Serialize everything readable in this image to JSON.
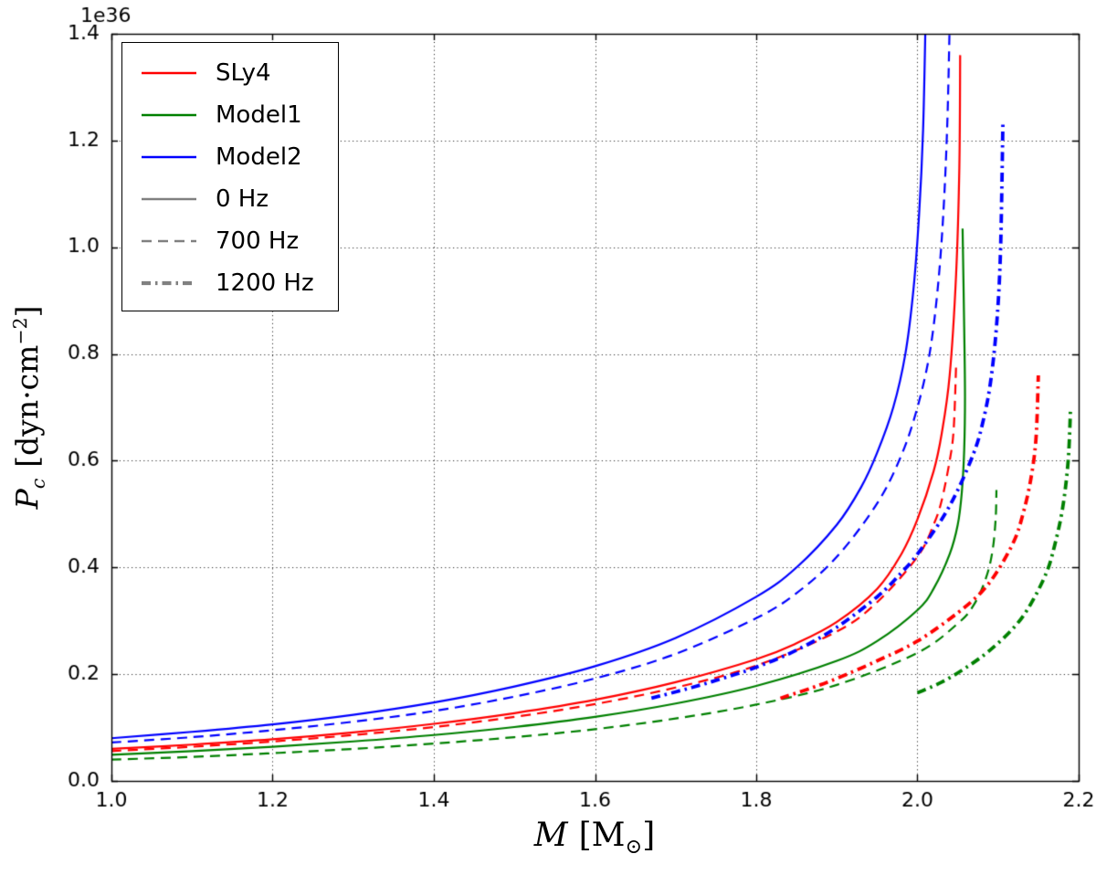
{
  "axis_labels": {
    "x": {
      "var": "M",
      "unit_pre": "[M",
      "unit_sub": "⊙",
      "unit_post": "]"
    },
    "y": {
      "var": "P",
      "var_sub": "c",
      "unit_pre": "[dyn·cm",
      "unit_sup": "−2",
      "unit_post": "]"
    }
  },
  "chart_data": {
    "type": "line",
    "title": "",
    "xlabel": "M [M_sun]",
    "ylabel": "P_c [dyn cm^-2]",
    "offset_text": "1e36",
    "xlim": [
      1.0,
      2.2
    ],
    "ylim": [
      0.0,
      1.4
    ],
    "grid": "dotted",
    "x_ticks": [
      "1.0",
      "1.2",
      "1.4",
      "1.6",
      "1.8",
      "2.0",
      "2.2"
    ],
    "x_tick_values": [
      1.0,
      1.2,
      1.4,
      1.6,
      1.8,
      2.0,
      2.2
    ],
    "y_ticks": [
      "0.0",
      "0.2",
      "0.4",
      "0.6",
      "0.8",
      "1.0",
      "1.2",
      "1.4"
    ],
    "y_tick_values": [
      0.0,
      0.2,
      0.4,
      0.6,
      0.8,
      1.0,
      1.2,
      1.4
    ],
    "legend": {
      "position": "upper left",
      "entries": [
        {
          "label": "SLy4",
          "color": "#ff0000",
          "dash": [],
          "width": 2.4
        },
        {
          "label": "Model1",
          "color": "#008000",
          "dash": [],
          "width": 2.4
        },
        {
          "label": "Model2",
          "color": "#0000ff",
          "dash": [],
          "width": 2.4
        },
        {
          "label": "0 Hz",
          "color": "#808080",
          "dash": [],
          "width": 2.4
        },
        {
          "label": "700 Hz",
          "color": "#808080",
          "dash": [
            11,
            7
          ],
          "width": 2.4
        },
        {
          "label": "1200 Hz",
          "color": "#808080",
          "dash": [
            10,
            5,
            2.5,
            5
          ],
          "width": 4.2
        }
      ]
    },
    "series": [
      {
        "name": "SLy4 0 Hz",
        "eos": "SLy4",
        "frequency_hz": 0,
        "color": "#ff0000",
        "dash": [],
        "width": 2.2,
        "points": [
          [
            1.0,
            0.06
          ],
          [
            1.1,
            0.068
          ],
          [
            1.2,
            0.078
          ],
          [
            1.3,
            0.091
          ],
          [
            1.4,
            0.107
          ],
          [
            1.5,
            0.127
          ],
          [
            1.6,
            0.152
          ],
          [
            1.7,
            0.185
          ],
          [
            1.8,
            0.228
          ],
          [
            1.85,
            0.258
          ],
          [
            1.9,
            0.298
          ],
          [
            1.95,
            0.36
          ],
          [
            1.98,
            0.425
          ],
          [
            2.0,
            0.49
          ],
          [
            2.02,
            0.58
          ],
          [
            2.03,
            0.65
          ],
          [
            2.04,
            0.76
          ],
          [
            2.048,
            0.95
          ],
          [
            2.052,
            1.15
          ],
          [
            2.053,
            1.36
          ]
        ]
      },
      {
        "name": "Model1 0 Hz",
        "eos": "Model1",
        "frequency_hz": 0,
        "color": "#008000",
        "dash": [],
        "width": 2.2,
        "points": [
          [
            1.0,
            0.049
          ],
          [
            1.1,
            0.056
          ],
          [
            1.2,
            0.064
          ],
          [
            1.3,
            0.074
          ],
          [
            1.4,
            0.086
          ],
          [
            1.5,
            0.101
          ],
          [
            1.6,
            0.12
          ],
          [
            1.7,
            0.145
          ],
          [
            1.8,
            0.178
          ],
          [
            1.9,
            0.225
          ],
          [
            1.95,
            0.262
          ],
          [
            2.0,
            0.32
          ],
          [
            2.02,
            0.36
          ],
          [
            2.04,
            0.425
          ],
          [
            2.05,
            0.48
          ],
          [
            2.055,
            0.54
          ],
          [
            2.058,
            0.62
          ],
          [
            2.059,
            0.72
          ],
          [
            2.058,
            0.85
          ],
          [
            2.056,
            1.035
          ]
        ]
      },
      {
        "name": "Model2 0 Hz",
        "eos": "Model2",
        "frequency_hz": 0,
        "color": "#0000ff",
        "dash": [],
        "width": 2.2,
        "points": [
          [
            1.0,
            0.08
          ],
          [
            1.1,
            0.092
          ],
          [
            1.2,
            0.106
          ],
          [
            1.3,
            0.124
          ],
          [
            1.4,
            0.147
          ],
          [
            1.5,
            0.177
          ],
          [
            1.6,
            0.215
          ],
          [
            1.7,
            0.268
          ],
          [
            1.8,
            0.345
          ],
          [
            1.85,
            0.4
          ],
          [
            1.9,
            0.48
          ],
          [
            1.93,
            0.55
          ],
          [
            1.95,
            0.615
          ],
          [
            1.97,
            0.7
          ],
          [
            1.985,
            0.8
          ],
          [
            1.995,
            0.92
          ],
          [
            2.002,
            1.06
          ],
          [
            2.007,
            1.22
          ],
          [
            2.01,
            1.42
          ]
        ]
      },
      {
        "name": "SLy4 700 Hz",
        "eos": "SLy4",
        "frequency_hz": 700,
        "color": "#ff0000",
        "dash": [
          11,
          7
        ],
        "width": 2.2,
        "points": [
          [
            1.0,
            0.056
          ],
          [
            1.1,
            0.064
          ],
          [
            1.2,
            0.074
          ],
          [
            1.3,
            0.086
          ],
          [
            1.4,
            0.101
          ],
          [
            1.5,
            0.12
          ],
          [
            1.6,
            0.144
          ],
          [
            1.7,
            0.175
          ],
          [
            1.8,
            0.216
          ],
          [
            1.9,
            0.28
          ],
          [
            1.95,
            0.335
          ],
          [
            2.0,
            0.42
          ],
          [
            2.02,
            0.48
          ],
          [
            2.03,
            0.525
          ],
          [
            2.04,
            0.6
          ],
          [
            2.045,
            0.66
          ],
          [
            2.048,
            0.78
          ]
        ]
      },
      {
        "name": "Model1 700 Hz",
        "eos": "Model1",
        "frequency_hz": 700,
        "color": "#008000",
        "dash": [
          11,
          7
        ],
        "width": 2.2,
        "points": [
          [
            1.0,
            0.04
          ],
          [
            1.1,
            0.045
          ],
          [
            1.2,
            0.052
          ],
          [
            1.3,
            0.06
          ],
          [
            1.4,
            0.07
          ],
          [
            1.5,
            0.082
          ],
          [
            1.6,
            0.097
          ],
          [
            1.7,
            0.117
          ],
          [
            1.8,
            0.143
          ],
          [
            1.9,
            0.18
          ],
          [
            2.0,
            0.24
          ],
          [
            2.05,
            0.295
          ],
          [
            2.07,
            0.33
          ],
          [
            2.085,
            0.38
          ],
          [
            2.093,
            0.43
          ],
          [
            2.097,
            0.49
          ],
          [
            2.098,
            0.545
          ]
        ]
      },
      {
        "name": "Model2 700 Hz",
        "eos": "Model2",
        "frequency_hz": 700,
        "color": "#0000ff",
        "dash": [
          11,
          7
        ],
        "width": 2.2,
        "points": [
          [
            1.0,
            0.072
          ],
          [
            1.1,
            0.082
          ],
          [
            1.2,
            0.095
          ],
          [
            1.3,
            0.111
          ],
          [
            1.4,
            0.131
          ],
          [
            1.5,
            0.158
          ],
          [
            1.6,
            0.192
          ],
          [
            1.7,
            0.238
          ],
          [
            1.8,
            0.305
          ],
          [
            1.85,
            0.352
          ],
          [
            1.9,
            0.42
          ],
          [
            1.95,
            0.52
          ],
          [
            1.98,
            0.61
          ],
          [
            2.0,
            0.7
          ],
          [
            2.015,
            0.8
          ],
          [
            2.025,
            0.92
          ],
          [
            2.032,
            1.06
          ],
          [
            2.037,
            1.23
          ],
          [
            2.04,
            1.42
          ]
        ]
      },
      {
        "name": "SLy4 1200 Hz",
        "eos": "SLy4",
        "frequency_hz": 1200,
        "color": "#ff0000",
        "dash": [
          10,
          5,
          2.5,
          5
        ],
        "width": 3.8,
        "points": [
          [
            1.83,
            0.155
          ],
          [
            1.87,
            0.175
          ],
          [
            1.9,
            0.192
          ],
          [
            1.95,
            0.225
          ],
          [
            2.0,
            0.262
          ],
          [
            2.05,
            0.315
          ],
          [
            2.08,
            0.355
          ],
          [
            2.1,
            0.395
          ],
          [
            2.12,
            0.45
          ],
          [
            2.13,
            0.495
          ],
          [
            2.14,
            0.56
          ],
          [
            2.147,
            0.64
          ],
          [
            2.15,
            0.76
          ]
        ]
      },
      {
        "name": "Model1 1200 Hz",
        "eos": "Model1",
        "frequency_hz": 1200,
        "color": "#008000",
        "dash": [
          10,
          5,
          2.5,
          5
        ],
        "width": 3.8,
        "points": [
          [
            2.0,
            0.165
          ],
          [
            2.03,
            0.185
          ],
          [
            2.06,
            0.212
          ],
          [
            2.09,
            0.245
          ],
          [
            2.12,
            0.288
          ],
          [
            2.14,
            0.33
          ],
          [
            2.16,
            0.39
          ],
          [
            2.17,
            0.44
          ],
          [
            2.18,
            0.51
          ],
          [
            2.187,
            0.6
          ],
          [
            2.19,
            0.7
          ]
        ]
      },
      {
        "name": "Model2 1200 Hz",
        "eos": "Model2",
        "frequency_hz": 1200,
        "color": "#0000ff",
        "dash": [
          10,
          5,
          2.5,
          5
        ],
        "width": 3.8,
        "points": [
          [
            1.67,
            0.155
          ],
          [
            1.72,
            0.175
          ],
          [
            1.76,
            0.193
          ],
          [
            1.8,
            0.213
          ],
          [
            1.85,
            0.245
          ],
          [
            1.9,
            0.288
          ],
          [
            1.95,
            0.345
          ],
          [
            1.98,
            0.39
          ],
          [
            2.0,
            0.425
          ],
          [
            2.03,
            0.49
          ],
          [
            2.05,
            0.545
          ],
          [
            2.07,
            0.615
          ],
          [
            2.08,
            0.665
          ],
          [
            2.09,
            0.74
          ],
          [
            2.098,
            0.85
          ],
          [
            2.103,
            0.99
          ],
          [
            2.106,
            1.23
          ]
        ]
      }
    ]
  }
}
